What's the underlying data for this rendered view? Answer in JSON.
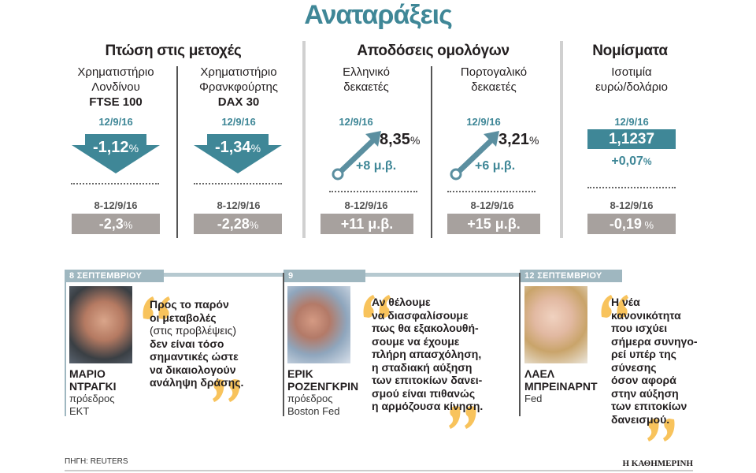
{
  "title": "Αναταράξεις",
  "sections": {
    "stocks": "Πτώση στις μετοχές",
    "bonds": "Αποδόσεις ομολόγων",
    "currencies": "Νομίσματα"
  },
  "colors": {
    "accent": "#3f8797",
    "gray_box": "#a7a19e",
    "quote_mark": "#f8c35c"
  },
  "columns": [
    {
      "line1": "Χρηματιστήριο",
      "line2": "Λονδίνου",
      "bold": "FTSE 100",
      "date": "12/9/16",
      "value": "-1,12",
      "unit": "%",
      "direction": "down",
      "period": "8-12/9/16",
      "period_value": "-2,3",
      "period_unit": "%"
    },
    {
      "line1": "Χρηματιστήριο",
      "line2": "Φρανκφούρτης",
      "bold": "DAX 30",
      "date": "12/9/16",
      "value": "-1,34",
      "unit": "%",
      "direction": "down",
      "period": "8-12/9/16",
      "period_value": "-2,28",
      "period_unit": "%"
    },
    {
      "line1": "Ελληνικό",
      "line2": "δεκαετές",
      "date": "12/9/16",
      "value": "8,35",
      "unit": "%",
      "change": "+8 μ.β.",
      "direction": "up",
      "period": "8-12/9/16",
      "period_value": "+11 μ.β."
    },
    {
      "line1": "Πορτογαλικό",
      "line2": "δεκαετές",
      "date": "12/9/16",
      "value": "3,21",
      "unit": "%",
      "change": "+6 μ.β.",
      "direction": "up",
      "period": "8-12/9/16",
      "period_value": "+15 μ.β."
    },
    {
      "line1": "Ισοτιμία",
      "line2": "ευρώ/δολάριο",
      "date": "12/9/16",
      "value": "1,1237",
      "change": "+0,07",
      "change_unit": "%",
      "period": "8-12/9/16",
      "period_value": "-0,19",
      "period_unit": " %"
    }
  ],
  "quotes": [
    {
      "date": "8 ΣΕΠΤΕΜΒΡΙΟΥ",
      "name1": "ΜΑΡΙΟ",
      "name2": "ΝΤΡΑΓΚΙ",
      "role1": "πρόεδρος",
      "role2": "ΕΚΤ",
      "lines": [
        "Προς το παρόν",
        "οι μεταβολές",
        "(στις προβλέψεις)",
        "δεν είναι τόσο",
        "σημαντικές ώστε",
        "να δικαιολογούν",
        "ανάληψη δράσης."
      ]
    },
    {
      "date": "9 ΣΕΠΤΕΜΒΡΙΟΥ",
      "name1": "ΕΡΙΚ",
      "name2": "ΡΟΖΕΝΓΚΡΙΝ",
      "role1": "πρόεδρος",
      "role2": "Boston Fed",
      "lines": [
        "Αν θέλουμε",
        "να διασφαλίσουμε",
        "πως θα εξακολουθή-",
        "σουμε να έχουμε",
        "πλήρη απασχόληση,",
        "η σταδιακή αύξηση",
        "των επιτοκίων δανει-",
        "σμού είναι πιθανώς",
        "η αρμόζουσα κίνηση."
      ]
    },
    {
      "date": "12 ΣΕΠΤΕΜΒΡΙΟΥ",
      "name1": "ΛΑΕΛ",
      "name2": "ΜΠΡΕΙΝΑΡΝΤ",
      "role1": "Fed",
      "role2": "",
      "lines": [
        "Η νέα",
        "κανονικότητα",
        "που ισχύει",
        "σήμερα συνηγο-",
        "ρεί υπέρ της",
        "σύνεσης",
        "όσον αφορά",
        "στην αύξηση",
        "των επιτοκίων",
        "δανεισμού."
      ]
    }
  ],
  "source": "ΠΗΓΗ: REUTERS",
  "logo": "Η ΚΑΘΗΜΕΡΙΝΗ"
}
